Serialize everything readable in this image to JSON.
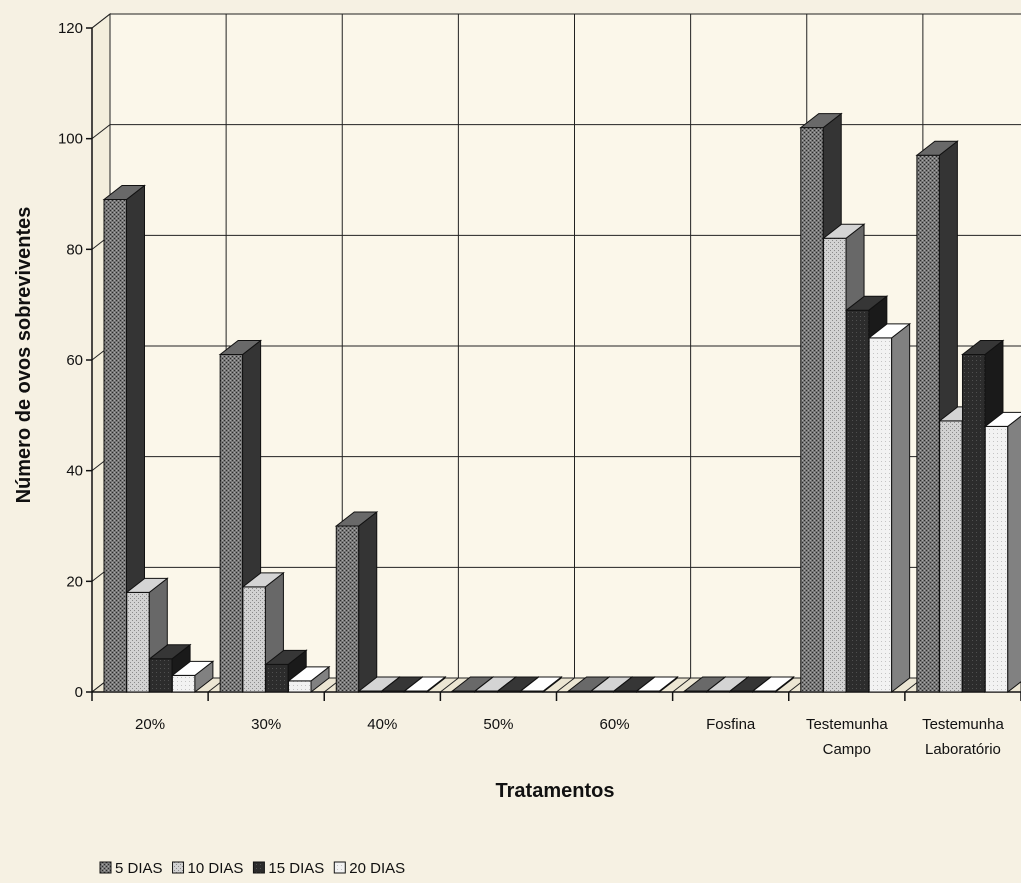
{
  "chart_data": {
    "type": "bar",
    "title": "",
    "xlabel": "Tratamentos",
    "ylabel": "Número de ovos sobreviventes",
    "ylim": [
      0,
      120
    ],
    "yticks": [
      0,
      20,
      40,
      60,
      80,
      100,
      120
    ],
    "grid": true,
    "legend_position": "bottom-left",
    "categories": [
      [
        "20%"
      ],
      [
        "30%"
      ],
      [
        "40%"
      ],
      [
        "50%"
      ],
      [
        "60%"
      ],
      [
        "Fosfina"
      ],
      [
        "Testemunha",
        "Campo"
      ],
      [
        "Testemunha",
        "Laboratório"
      ]
    ],
    "series": [
      {
        "name": "5 DIAS",
        "values": [
          89,
          61,
          30,
          0,
          0,
          0,
          102,
          97
        ]
      },
      {
        "name": "10 DIAS",
        "values": [
          18,
          19,
          0,
          0,
          0,
          0,
          82,
          49
        ]
      },
      {
        "name": "15 DIAS",
        "values": [
          6,
          5,
          0,
          0,
          0,
          0,
          69,
          61
        ]
      },
      {
        "name": "20 DIAS",
        "values": [
          3,
          2,
          0,
          0,
          0,
          0,
          64,
          48
        ]
      }
    ],
    "colors": {
      "5 DIAS": "#5e5e5e",
      "10 DIAS": "#bdbdbd",
      "15 DIAS": "#303030",
      "20 DIAS": "#ebebeb"
    }
  }
}
